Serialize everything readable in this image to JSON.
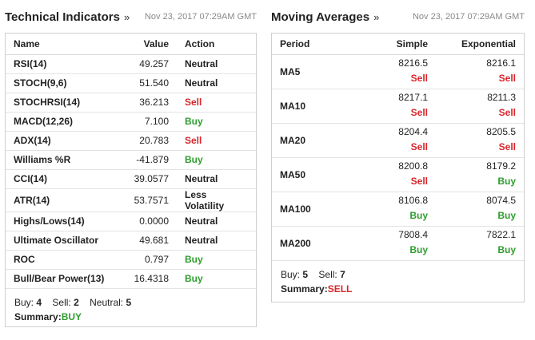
{
  "technical": {
    "title": "Technical Indicators",
    "arrow": "»",
    "date": "Nov 23, 2017 07:29AM GMT",
    "headers": {
      "name": "Name",
      "value": "Value",
      "action": "Action"
    },
    "rows": [
      {
        "name": "RSI(14)",
        "value": "49.257",
        "action": "Neutral",
        "type": "neutral"
      },
      {
        "name": "STOCH(9,6)",
        "value": "51.540",
        "action": "Neutral",
        "type": "neutral"
      },
      {
        "name": "STOCHRSI(14)",
        "value": "36.213",
        "action": "Sell",
        "type": "sell"
      },
      {
        "name": "MACD(12,26)",
        "value": "7.100",
        "action": "Buy",
        "type": "buy"
      },
      {
        "name": "ADX(14)",
        "value": "20.783",
        "action": "Sell",
        "type": "sell"
      },
      {
        "name": "Williams %R",
        "value": "-41.879",
        "action": "Buy",
        "type": "buy"
      },
      {
        "name": "CCI(14)",
        "value": "39.0577",
        "action": "Neutral",
        "type": "neutral"
      },
      {
        "name": "ATR(14)",
        "value": "53.7571",
        "action": "Less Volatility",
        "type": "neutral"
      },
      {
        "name": "Highs/Lows(14)",
        "value": "0.0000",
        "action": "Neutral",
        "type": "neutral"
      },
      {
        "name": "Ultimate Oscillator",
        "value": "49.681",
        "action": "Neutral",
        "type": "neutral"
      },
      {
        "name": "ROC",
        "value": "0.797",
        "action": "Buy",
        "type": "buy"
      },
      {
        "name": "Bull/Bear Power(13)",
        "value": "16.4318",
        "action": "Buy",
        "type": "buy"
      }
    ],
    "counts": {
      "buy_label": "Buy:",
      "buy": "4",
      "sell_label": "Sell:",
      "sell": "2",
      "neutral_label": "Neutral:",
      "neutral": "5"
    },
    "summary": {
      "label": "Summary:",
      "value": "BUY",
      "type": "buy"
    }
  },
  "moving": {
    "title": "Moving Averages",
    "arrow": "»",
    "date": "Nov 23, 2017 07:29AM GMT",
    "headers": {
      "period": "Period",
      "simple": "Simple",
      "exponential": "Exponential"
    },
    "rows": [
      {
        "period": "MA5",
        "simple": "8216.5",
        "simple_action": "Sell",
        "simple_type": "sell",
        "exp": "8216.1",
        "exp_action": "Sell",
        "exp_type": "sell"
      },
      {
        "period": "MA10",
        "simple": "8217.1",
        "simple_action": "Sell",
        "simple_type": "sell",
        "exp": "8211.3",
        "exp_action": "Sell",
        "exp_type": "sell"
      },
      {
        "period": "MA20",
        "simple": "8204.4",
        "simple_action": "Sell",
        "simple_type": "sell",
        "exp": "8205.5",
        "exp_action": "Sell",
        "exp_type": "sell"
      },
      {
        "period": "MA50",
        "simple": "8200.8",
        "simple_action": "Sell",
        "simple_type": "sell",
        "exp": "8179.2",
        "exp_action": "Buy",
        "exp_type": "buy"
      },
      {
        "period": "MA100",
        "simple": "8106.8",
        "simple_action": "Buy",
        "simple_type": "buy",
        "exp": "8074.5",
        "exp_action": "Buy",
        "exp_type": "buy"
      },
      {
        "period": "MA200",
        "simple": "7808.4",
        "simple_action": "Buy",
        "simple_type": "buy",
        "exp": "7822.1",
        "exp_action": "Buy",
        "exp_type": "buy"
      }
    ],
    "counts": {
      "buy_label": "Buy:",
      "buy": "5",
      "sell_label": "Sell:",
      "sell": "7"
    },
    "summary": {
      "label": "Summary:",
      "value": "SELL",
      "type": "sell"
    }
  },
  "colors": {
    "buy": "#2e9e2e",
    "sell": "#d8262c",
    "border": "#cfcfcf",
    "date": "#888888"
  }
}
